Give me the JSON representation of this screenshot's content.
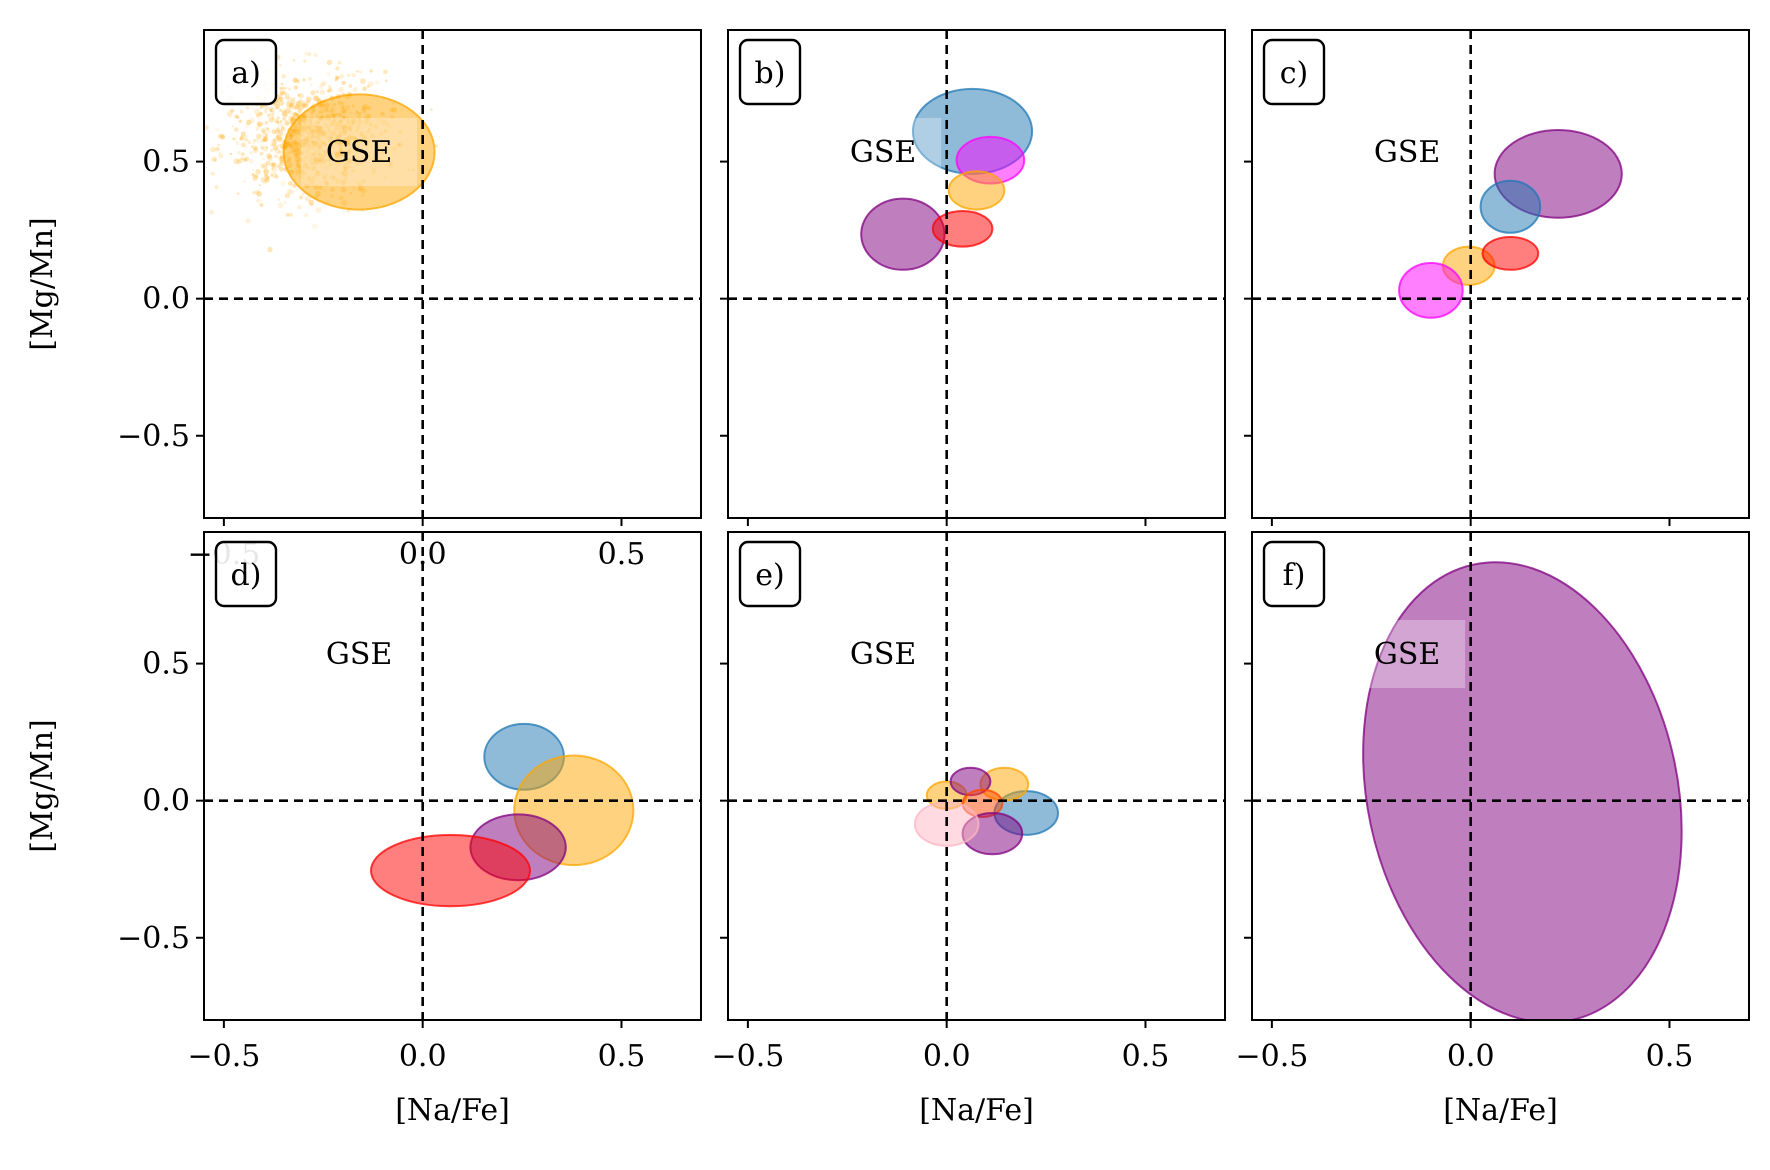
{
  "figure": {
    "xlabel": "[Na/Fe]",
    "ylabel": "[Mg/Mn]"
  },
  "chart_data": [
    {
      "type": "scatter",
      "panel": "a)",
      "annotation": "GSE",
      "xlim": [
        -0.55,
        0.7
      ],
      "ylim": [
        -0.8,
        0.98
      ],
      "xticks": [
        -0.5,
        0.0,
        0.5
      ],
      "yticks": [
        -0.5,
        0.0,
        0.5
      ],
      "xtick_labels": [
        "−0.5",
        "0.0",
        "0.5"
      ],
      "ytick_labels": [
        "−0.5",
        "0.0",
        "0.5"
      ],
      "reference_lines": {
        "x": 0,
        "y": 0
      },
      "scatter_color": "#ffa500",
      "scatter_region": {
        "x_center": -0.3,
        "y_center": 0.6,
        "x_spread": 0.17,
        "y_spread": 0.16
      },
      "ellipses": [
        {
          "color": "#ffa500",
          "cx": -0.16,
          "cy": 0.535,
          "rx": 0.19,
          "ry": 0.21,
          "angle": 0
        }
      ],
      "xlabel": "",
      "ylabel": "[Mg/Mn]"
    },
    {
      "type": "scatter",
      "panel": "b)",
      "annotation": "GSE",
      "xlim": [
        -0.55,
        0.7
      ],
      "ylim": [
        -0.8,
        0.98
      ],
      "xticks": [
        -0.5,
        0.0,
        0.5
      ],
      "yticks": [
        -0.5,
        0.0,
        0.5
      ],
      "xtick_labels": [
        "",
        "",
        ""
      ],
      "ytick_labels": [
        "",
        "",
        ""
      ],
      "reference_lines": {
        "x": 0,
        "y": 0
      },
      "ellipses": [
        {
          "color": "#1f77b4",
          "cx": 0.065,
          "cy": 0.61,
          "rx": 0.15,
          "ry": 0.155,
          "angle": 0
        },
        {
          "color": "#ff00ff",
          "cx": 0.11,
          "cy": 0.505,
          "rx": 0.085,
          "ry": 0.085,
          "angle": 0
        },
        {
          "color": "#ffa500",
          "cx": 0.075,
          "cy": 0.395,
          "rx": 0.07,
          "ry": 0.07,
          "angle": 0
        },
        {
          "color": "#800080",
          "cx": -0.11,
          "cy": 0.235,
          "rx": 0.105,
          "ry": 0.13,
          "angle": 0
        },
        {
          "color": "#ff0000",
          "cx": 0.04,
          "cy": 0.255,
          "rx": 0.075,
          "ry": 0.065,
          "angle": 0
        }
      ],
      "xlabel": "",
      "ylabel": ""
    },
    {
      "type": "scatter",
      "panel": "c)",
      "annotation": "GSE",
      "xlim": [
        -0.55,
        0.7
      ],
      "ylim": [
        -0.8,
        0.98
      ],
      "xticks": [
        -0.5,
        0.0,
        0.5
      ],
      "yticks": [
        -0.5,
        0.0,
        0.5
      ],
      "xtick_labels": [
        "",
        "",
        ""
      ],
      "ytick_labels": [
        "",
        "",
        ""
      ],
      "reference_lines": {
        "x": 0,
        "y": 0
      },
      "ellipses": [
        {
          "color": "#800080",
          "cx": 0.22,
          "cy": 0.455,
          "rx": 0.16,
          "ry": 0.16,
          "angle": 0
        },
        {
          "color": "#1f77b4",
          "cx": 0.1,
          "cy": 0.335,
          "rx": 0.075,
          "ry": 0.095,
          "angle": 0
        },
        {
          "color": "#ffa500",
          "cx": -0.005,
          "cy": 0.12,
          "rx": 0.065,
          "ry": 0.07,
          "angle": 0
        },
        {
          "color": "#ff0000",
          "cx": 0.1,
          "cy": 0.165,
          "rx": 0.07,
          "ry": 0.06,
          "angle": 0
        },
        {
          "color": "#ff00ff",
          "cx": -0.1,
          "cy": 0.03,
          "rx": 0.08,
          "ry": 0.1,
          "angle": 0
        }
      ],
      "xlabel": "",
      "ylabel": ""
    },
    {
      "type": "scatter",
      "panel": "d)",
      "annotation": "GSE",
      "xlim": [
        -0.55,
        0.7
      ],
      "ylim": [
        -0.8,
        0.98
      ],
      "xticks": [
        -0.5,
        0.0,
        0.5
      ],
      "yticks": [
        -0.5,
        0.0,
        0.5
      ],
      "xtick_labels": [
        "−0.5",
        "0.0",
        "0.5"
      ],
      "ytick_labels": [
        "−0.5",
        "0.0",
        "0.5"
      ],
      "reference_lines": {
        "x": 0,
        "y": 0
      },
      "ellipses": [
        {
          "color": "#1f77b4",
          "cx": 0.255,
          "cy": 0.16,
          "rx": 0.1,
          "ry": 0.12,
          "angle": 0
        },
        {
          "color": "#ffa500",
          "cx": 0.38,
          "cy": -0.035,
          "rx": 0.15,
          "ry": 0.2,
          "angle": 0
        },
        {
          "color": "#800080",
          "cx": 0.24,
          "cy": -0.17,
          "rx": 0.12,
          "ry": 0.12,
          "angle": 0
        },
        {
          "color": "#ff0000",
          "cx": 0.07,
          "cy": -0.255,
          "rx": 0.2,
          "ry": 0.13,
          "angle": 0
        }
      ],
      "xlabel": "[Na/Fe]",
      "ylabel": "[Mg/Mn]"
    },
    {
      "type": "scatter",
      "panel": "e)",
      "annotation": "GSE",
      "xlim": [
        -0.55,
        0.7
      ],
      "ylim": [
        -0.8,
        0.98
      ],
      "xticks": [
        -0.5,
        0.0,
        0.5
      ],
      "yticks": [
        -0.5,
        0.0,
        0.5
      ],
      "xtick_labels": [
        "−0.5",
        "0.0",
        "0.5"
      ],
      "ytick_labels": [
        "",
        "",
        ""
      ],
      "reference_lines": {
        "x": 0,
        "y": 0
      },
      "ellipses": [
        {
          "color": "#1f77b4",
          "cx": 0.2,
          "cy": -0.045,
          "rx": 0.08,
          "ry": 0.08,
          "angle": 0
        },
        {
          "color": "#ffa500",
          "cx": 0.145,
          "cy": 0.06,
          "rx": 0.06,
          "ry": 0.06,
          "angle": 0
        },
        {
          "color": "#ffa500",
          "cx": 0.0,
          "cy": 0.02,
          "rx": 0.05,
          "ry": 0.05,
          "angle": 0
        },
        {
          "color": "#800080",
          "cx": 0.06,
          "cy": 0.07,
          "rx": 0.05,
          "ry": 0.05,
          "angle": 0
        },
        {
          "color": "#ff4500",
          "cx": 0.09,
          "cy": -0.01,
          "rx": 0.05,
          "ry": 0.05,
          "angle": 0
        },
        {
          "color": "#800080",
          "cx": 0.115,
          "cy": -0.12,
          "rx": 0.075,
          "ry": 0.075,
          "angle": 0
        },
        {
          "color": "#ffb6c1",
          "cx": 0.0,
          "cy": -0.085,
          "rx": 0.08,
          "ry": 0.08,
          "angle": 0
        }
      ],
      "xlabel": "[Na/Fe]",
      "ylabel": ""
    },
    {
      "type": "scatter",
      "panel": "f)",
      "annotation": "GSE",
      "xlim": [
        -0.55,
        0.7
      ],
      "ylim": [
        -0.8,
        0.98
      ],
      "xticks": [
        -0.5,
        0.0,
        0.5
      ],
      "yticks": [
        -0.5,
        0.0,
        0.5
      ],
      "xtick_labels": [
        "−0.5",
        "0.0",
        "0.5"
      ],
      "ytick_labels": [
        "",
        "",
        ""
      ],
      "reference_lines": {
        "x": 0,
        "y": 0
      },
      "ellipses": [
        {
          "color": "#800080",
          "cx": 0.13,
          "cy": 0.03,
          "rx": 0.39,
          "ry": 0.85,
          "angle": -12
        }
      ],
      "xlabel": "[Na/Fe]",
      "ylabel": ""
    }
  ]
}
